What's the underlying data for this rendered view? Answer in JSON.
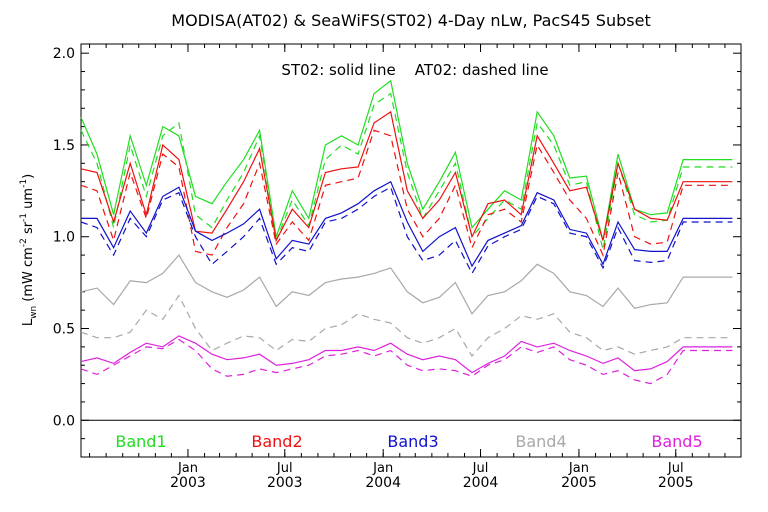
{
  "chart_data": {
    "type": "line",
    "title": "MODISA(AT02) & SeaWiFS(ST02) 4-Day nLw, PacS45 Subset",
    "annotation": "ST02: solid line    AT02: dashed line",
    "ylabel": "L_wn (mW cm^-2 sr^-1 um^-1)",
    "ylabel_parts": {
      "base": "L",
      "sub": "wn",
      "rest": " (mW cm",
      "sup1": "-2",
      "mid": " sr",
      "sup2": "-1",
      "mid2": " um",
      "sup3": "-1",
      "end": ")"
    },
    "ylim": [
      -0.2,
      2.05
    ],
    "yticks": [
      0.0,
      0.5,
      1.0,
      1.5,
      2.0
    ],
    "ytick_labels": [
      "0.0",
      "0.5",
      "1.0",
      "1.5",
      "2.0"
    ],
    "xlim": [
      "2002-06-15",
      "2005-10-31"
    ],
    "xtick_labels": [
      {
        "date": "2003-01-01",
        "line1": "Jan",
        "line2": "2003"
      },
      {
        "date": "2003-07-01",
        "line1": "Jul",
        "line2": "2003"
      },
      {
        "date": "2004-01-01",
        "line1": "Jan",
        "line2": "2004"
      },
      {
        "date": "2004-07-01",
        "line1": "Jul",
        "line2": "2004"
      },
      {
        "date": "2005-01-01",
        "line1": "Jan",
        "line2": "2005"
      },
      {
        "date": "2005-07-01",
        "line1": "Jul",
        "line2": "2005"
      }
    ],
    "zero_line": true,
    "legend": [
      {
        "label": "Band1",
        "color": "#22dd22"
      },
      {
        "label": "Band2",
        "color": "#ee1111"
      },
      {
        "label": "Band3",
        "color": "#1111cc"
      },
      {
        "label": "Band4",
        "color": "#a8a8a8"
      },
      {
        "label": "Band5",
        "color": "#dd22dd"
      }
    ],
    "x": [
      "2002-06-15",
      "2002-07-15",
      "2002-08-15",
      "2002-09-15",
      "2002-10-15",
      "2002-11-15",
      "2002-12-15",
      "2003-01-15",
      "2003-02-15",
      "2003-03-15",
      "2003-04-15",
      "2003-05-15",
      "2003-06-15",
      "2003-07-15",
      "2003-08-15",
      "2003-09-15",
      "2003-10-15",
      "2003-11-15",
      "2003-12-15",
      "2004-01-15",
      "2004-02-15",
      "2004-03-15",
      "2004-04-15",
      "2004-05-15",
      "2004-06-15",
      "2004-07-15",
      "2004-08-15",
      "2004-09-15",
      "2004-10-15",
      "2004-11-15",
      "2004-12-15",
      "2005-01-15",
      "2005-02-15",
      "2005-03-15",
      "2005-04-15",
      "2005-05-15",
      "2005-06-15",
      "2005-07-15",
      "2005-08-15",
      "2005-09-15",
      "2005-10-15"
    ],
    "series": [
      {
        "band": "Band1",
        "sensor": "ST02",
        "style": "solid",
        "color": "#22dd22",
        "values": [
          1.65,
          1.45,
          1.12,
          1.55,
          1.28,
          1.6,
          1.55,
          1.22,
          1.18,
          1.3,
          1.42,
          1.58,
          1.0,
          1.25,
          1.1,
          1.5,
          1.55,
          1.5,
          1.78,
          1.85,
          1.4,
          1.15,
          1.3,
          1.46,
          1.05,
          1.15,
          1.25,
          1.2,
          1.68,
          1.55,
          1.32,
          1.33,
          0.98,
          1.45,
          1.15,
          1.12,
          1.13,
          1.42,
          1.42,
          1.42,
          1.42
        ]
      },
      {
        "band": "Band1",
        "sensor": "AT02",
        "style": "dashed",
        "color": "#22dd22",
        "values": [
          1.58,
          1.4,
          1.05,
          1.5,
          1.22,
          1.55,
          1.62,
          1.12,
          1.05,
          1.2,
          1.35,
          1.55,
          0.98,
          1.2,
          1.06,
          1.42,
          1.5,
          1.45,
          1.72,
          1.78,
          1.35,
          1.1,
          1.25,
          1.4,
          1.0,
          1.1,
          1.2,
          1.15,
          1.62,
          1.5,
          1.28,
          1.3,
          0.93,
          1.4,
          1.12,
          1.08,
          1.09,
          1.38,
          1.38,
          1.38,
          1.38
        ]
      },
      {
        "band": "Band2",
        "sensor": "ST02",
        "style": "solid",
        "color": "#ee1111",
        "values": [
          1.37,
          1.35,
          1.08,
          1.4,
          1.12,
          1.5,
          1.42,
          1.03,
          1.02,
          1.15,
          1.3,
          1.48,
          0.98,
          1.15,
          1.05,
          1.35,
          1.37,
          1.38,
          1.62,
          1.68,
          1.25,
          1.1,
          1.2,
          1.35,
          1.0,
          1.18,
          1.2,
          1.12,
          1.55,
          1.4,
          1.25,
          1.27,
          0.98,
          1.4,
          1.15,
          1.1,
          1.09,
          1.3,
          1.3,
          1.3,
          1.3
        ]
      },
      {
        "band": "Band2",
        "sensor": "AT02",
        "style": "dashed",
        "color": "#ee1111",
        "values": [
          1.28,
          1.25,
          0.98,
          1.35,
          1.1,
          1.45,
          1.38,
          0.92,
          0.9,
          1.05,
          1.18,
          1.4,
          0.96,
          1.08,
          0.98,
          1.28,
          1.3,
          1.32,
          1.58,
          1.55,
          1.15,
          1.0,
          1.1,
          1.28,
          0.94,
          1.12,
          1.15,
          1.08,
          1.5,
          1.35,
          1.2,
          1.1,
          0.9,
          1.35,
          1.0,
          0.96,
          0.97,
          1.28,
          1.28,
          1.28,
          1.28
        ]
      },
      {
        "band": "Band3",
        "sensor": "ST02",
        "style": "solid",
        "color": "#1111cc",
        "values": [
          1.1,
          1.1,
          0.94,
          1.14,
          1.02,
          1.22,
          1.27,
          1.03,
          0.98,
          1.02,
          1.07,
          1.15,
          0.88,
          0.98,
          0.96,
          1.1,
          1.13,
          1.18,
          1.25,
          1.3,
          1.08,
          0.92,
          1.0,
          1.05,
          0.84,
          0.98,
          1.02,
          1.06,
          1.24,
          1.2,
          1.04,
          1.02,
          0.85,
          1.08,
          0.93,
          0.92,
          0.92,
          1.1,
          1.1,
          1.1,
          1.1
        ]
      },
      {
        "band": "Band3",
        "sensor": "AT02",
        "style": "dashed",
        "color": "#1111cc",
        "values": [
          1.08,
          1.05,
          0.9,
          1.1,
          1.0,
          1.2,
          1.24,
          1.0,
          0.85,
          0.92,
          1.0,
          1.1,
          0.85,
          0.94,
          0.92,
          1.08,
          1.1,
          1.15,
          1.22,
          1.27,
          1.0,
          0.87,
          0.9,
          0.98,
          0.8,
          0.95,
          1.0,
          1.04,
          1.22,
          1.18,
          1.02,
          1.0,
          0.83,
          1.05,
          0.87,
          0.86,
          0.87,
          1.08,
          1.08,
          1.08,
          1.08
        ]
      },
      {
        "band": "Band4",
        "sensor": "ST02",
        "style": "solid",
        "color": "#a8a8a8",
        "values": [
          0.7,
          0.72,
          0.63,
          0.76,
          0.75,
          0.8,
          0.9,
          0.75,
          0.7,
          0.67,
          0.71,
          0.78,
          0.62,
          0.7,
          0.68,
          0.75,
          0.77,
          0.78,
          0.8,
          0.83,
          0.7,
          0.64,
          0.67,
          0.75,
          0.58,
          0.68,
          0.7,
          0.76,
          0.85,
          0.8,
          0.7,
          0.68,
          0.62,
          0.72,
          0.61,
          0.63,
          0.64,
          0.78,
          0.78,
          0.78,
          0.78
        ]
      },
      {
        "band": "Band4",
        "sensor": "AT02",
        "style": "dashed",
        "color": "#a8a8a8",
        "values": [
          0.48,
          0.45,
          0.45,
          0.48,
          0.6,
          0.55,
          0.68,
          0.5,
          0.38,
          0.42,
          0.46,
          0.45,
          0.38,
          0.44,
          0.43,
          0.5,
          0.52,
          0.58,
          0.55,
          0.53,
          0.45,
          0.42,
          0.45,
          0.5,
          0.35,
          0.45,
          0.5,
          0.57,
          0.55,
          0.58,
          0.48,
          0.45,
          0.38,
          0.4,
          0.36,
          0.38,
          0.4,
          0.45,
          0.45,
          0.45,
          0.45
        ]
      },
      {
        "band": "Band5",
        "sensor": "ST02",
        "style": "solid",
        "color": "#dd22dd",
        "values": [
          0.32,
          0.34,
          0.31,
          0.37,
          0.42,
          0.4,
          0.46,
          0.42,
          0.36,
          0.33,
          0.34,
          0.36,
          0.3,
          0.31,
          0.33,
          0.38,
          0.38,
          0.4,
          0.38,
          0.42,
          0.36,
          0.33,
          0.35,
          0.33,
          0.26,
          0.31,
          0.35,
          0.43,
          0.4,
          0.42,
          0.38,
          0.35,
          0.31,
          0.34,
          0.27,
          0.28,
          0.32,
          0.4,
          0.4,
          0.4,
          0.4
        ]
      },
      {
        "band": "Band5",
        "sensor": "AT02",
        "style": "dashed",
        "color": "#dd22dd",
        "values": [
          0.28,
          0.25,
          0.3,
          0.35,
          0.4,
          0.39,
          0.44,
          0.38,
          0.28,
          0.24,
          0.25,
          0.28,
          0.26,
          0.28,
          0.3,
          0.35,
          0.36,
          0.38,
          0.35,
          0.38,
          0.3,
          0.27,
          0.28,
          0.27,
          0.24,
          0.3,
          0.33,
          0.4,
          0.37,
          0.4,
          0.33,
          0.3,
          0.25,
          0.27,
          0.22,
          0.2,
          0.25,
          0.38,
          0.38,
          0.38,
          0.38
        ]
      }
    ]
  }
}
